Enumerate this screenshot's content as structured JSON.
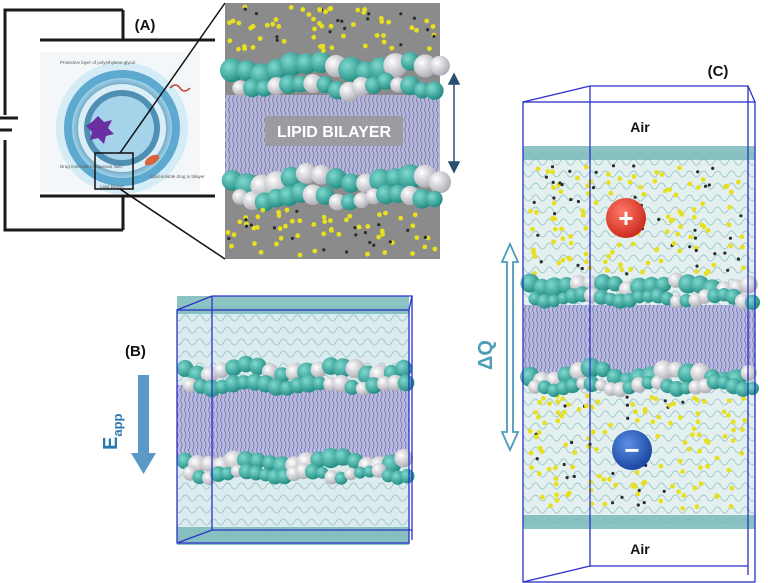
{
  "panels": {
    "a": {
      "label": "(A)",
      "bilayer_label": "LIPID BILAYER",
      "liposome_texts": [
        "Protective layer of polyethylene glycol",
        "Drug molecule in aqueous fluid",
        "Lipid-soluble drug in bilayer",
        "Lipid bilayer"
      ]
    },
    "b": {
      "label": "(B)",
      "field_symbol": "E",
      "field_subscript": "app"
    },
    "c": {
      "label": "(C)",
      "air_top": "Air",
      "air_bottom": "Air",
      "charge_label": "ΔQ",
      "plus_sign": "+",
      "minus_sign": "−"
    }
  },
  "colors": {
    "headgroup_teal": "#2fa59a",
    "headgroup_white": "#e6e6ea",
    "tail_lilac": "#7b7fb5",
    "water_pale": "#cfe6e6",
    "ion_yellow": "#e8df1e",
    "box_blue": "#2a2fc9",
    "arrow_blue": "#2e78b0",
    "delta_teal": "#4d9db6",
    "plus_red": "#e03324",
    "minus_blue": "#1f57b7"
  }
}
